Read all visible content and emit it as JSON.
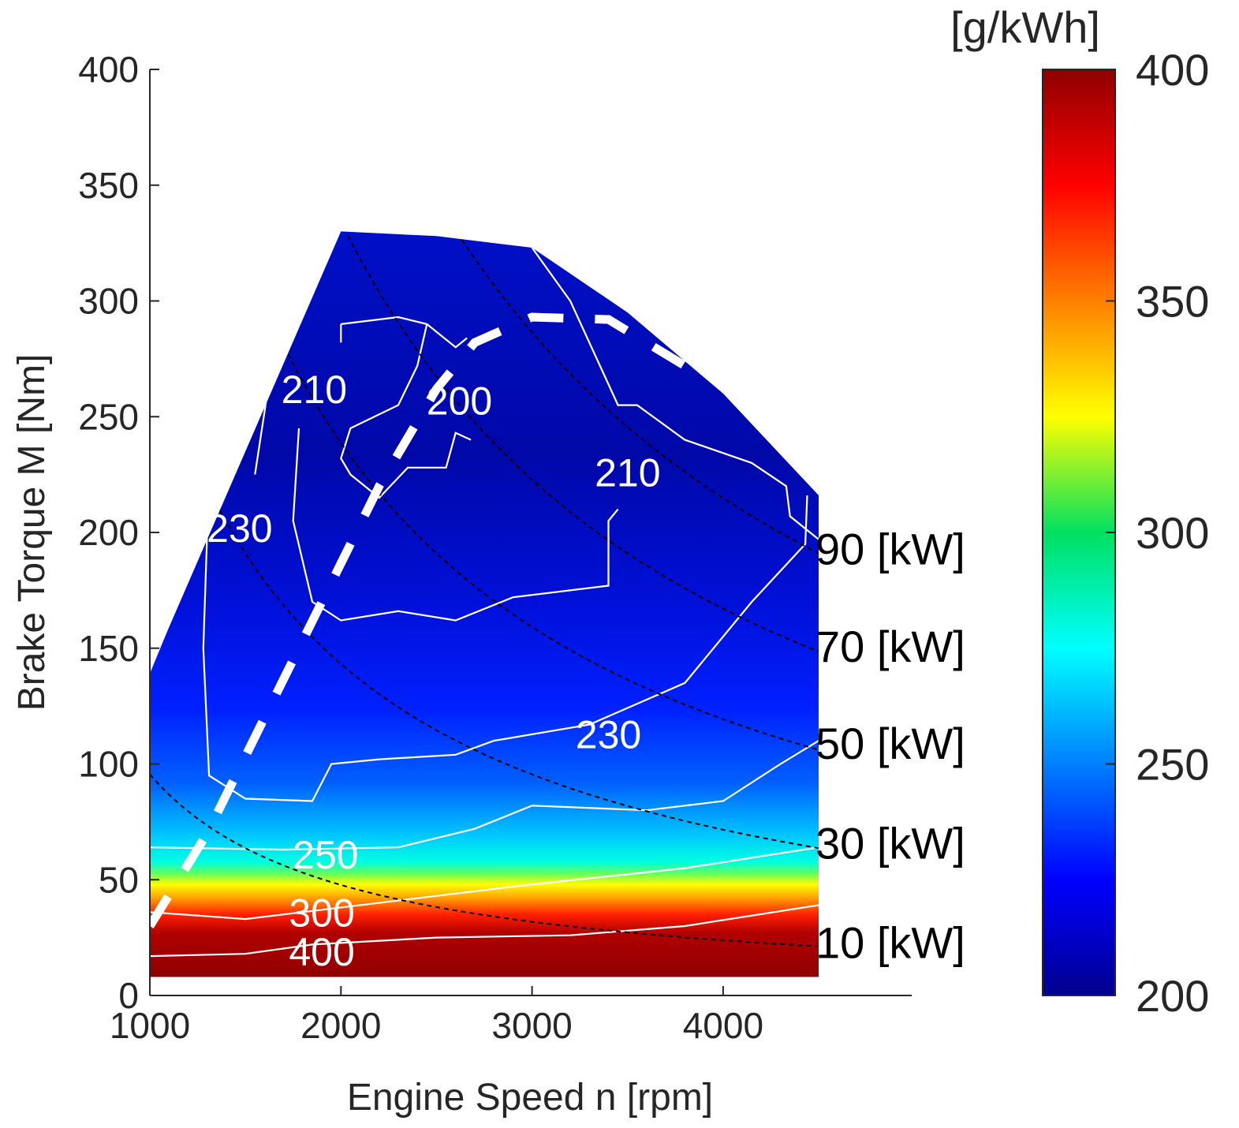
{
  "chart_data": {
    "type": "heatmap",
    "title": "",
    "xlabel": "Engine Speed n [rpm]",
    "ylabel": "Brake Torque M [Nm]",
    "xlim": [
      1000,
      5000
    ],
    "ylim": [
      0,
      400
    ],
    "xticks": [
      "1000",
      "2000",
      "3000",
      "4000"
    ],
    "yticks": [
      "0",
      "50",
      "100",
      "150",
      "200",
      "250",
      "300",
      "350",
      "400"
    ],
    "colorbar": {
      "label": "[g/kWh]",
      "range": [
        200,
        400
      ],
      "ticks": [
        "200",
        "250",
        "300",
        "350",
        "400"
      ],
      "colormap": "jet"
    },
    "full_load_curve": [
      {
        "x": 1000,
        "y": 140
      },
      {
        "x": 2000,
        "y": 330
      },
      {
        "x": 2500,
        "y": 328
      },
      {
        "x": 3000,
        "y": 323
      },
      {
        "x": 3500,
        "y": 295
      },
      {
        "x": 4000,
        "y": 260
      },
      {
        "x": 4500,
        "y": 216
      }
    ],
    "bsfc_contours": [
      {
        "label": "200",
        "level": 200
      },
      {
        "label": "210",
        "level": 210
      },
      {
        "label": "230",
        "level": 230
      },
      {
        "label": "250",
        "level": 250
      },
      {
        "label": "300",
        "level": 300
      },
      {
        "label": "400",
        "level": 400
      }
    ],
    "contour_labels": [
      {
        "text": "210",
        "x": 1860,
        "y": 262
      },
      {
        "text": "200",
        "x": 2620,
        "y": 257
      },
      {
        "text": "210",
        "x": 3500,
        "y": 226
      },
      {
        "text": "230",
        "x": 1470,
        "y": 202
      },
      {
        "text": "230",
        "x": 3400,
        "y": 113
      },
      {
        "text": "250",
        "x": 1920,
        "y": 61
      },
      {
        "text": "300",
        "x": 1900,
        "y": 36
      },
      {
        "text": "400",
        "x": 1900,
        "y": 19
      }
    ],
    "power_lines": [
      {
        "label": "90 [kW]",
        "kw": 90,
        "label_y": 193
      },
      {
        "label": "70 [kW]",
        "kw": 70,
        "label_y": 151
      },
      {
        "label": "50 [kW]",
        "kw": 50,
        "label_y": 109
      },
      {
        "label": "30 [kW]",
        "kw": 30,
        "label_y": 66
      },
      {
        "label": "10 [kW]",
        "kw": 10,
        "label_y": 23
      }
    ],
    "optimal_operating_line": [
      {
        "x": 1000,
        "y": 30
      },
      {
        "x": 1300,
        "y": 70
      },
      {
        "x": 1600,
        "y": 120
      },
      {
        "x": 1900,
        "y": 170
      },
      {
        "x": 2200,
        "y": 220
      },
      {
        "x": 2500,
        "y": 262
      },
      {
        "x": 2700,
        "y": 282
      },
      {
        "x": 3000,
        "y": 293
      },
      {
        "x": 3400,
        "y": 292
      },
      {
        "x": 3800,
        "y": 272
      }
    ]
  }
}
